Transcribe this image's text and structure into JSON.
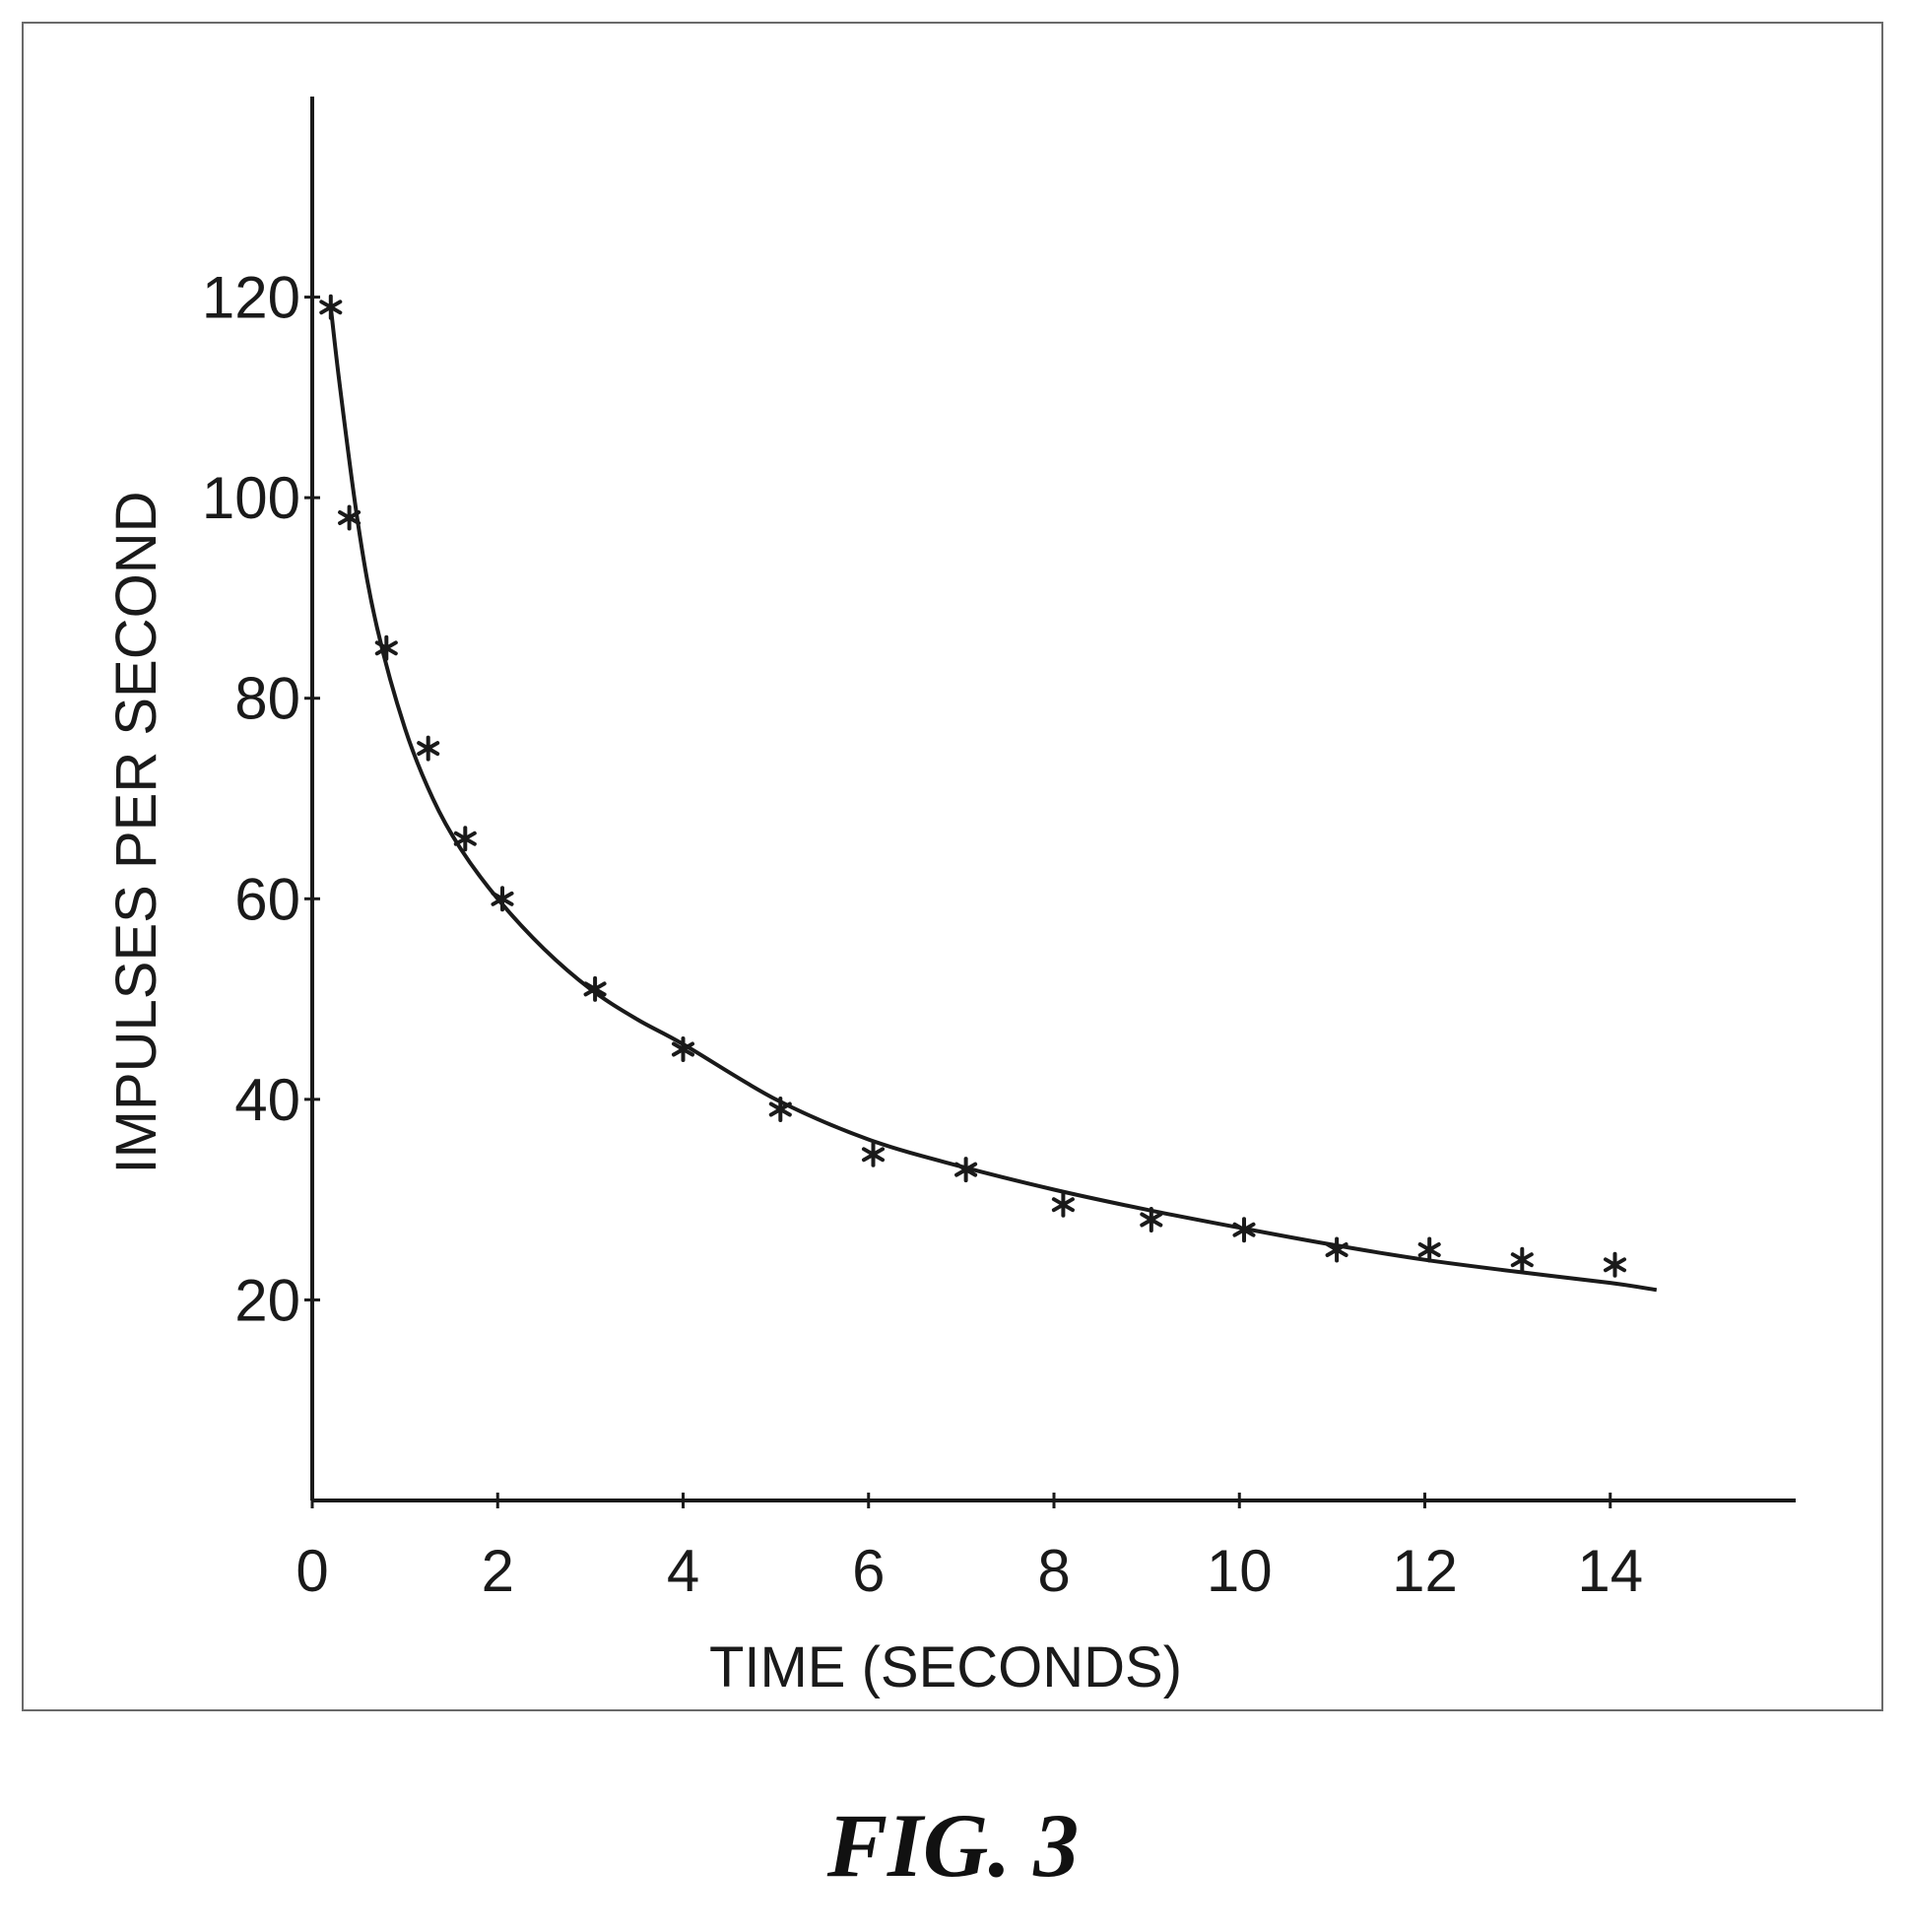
{
  "figure": {
    "caption": "FIG. 3"
  },
  "chart_data": {
    "type": "scatter",
    "title": "",
    "xlabel": "TIME (SECONDS)",
    "ylabel": "IMPULSES PER SECOND",
    "xlim": [
      0,
      16
    ],
    "ylim": [
      0,
      140
    ],
    "x_ticks": [
      0,
      2,
      4,
      6,
      8,
      10,
      12,
      14
    ],
    "y_ticks": [
      20,
      40,
      60,
      80,
      100,
      120
    ],
    "grid": false,
    "legend": "none",
    "series": [
      {
        "kind": "points",
        "marker": "asterisk",
        "x": [
          0.2,
          0.4,
          0.8,
          1.25,
          1.65,
          2.05,
          3.05,
          4.0,
          5.05,
          6.05,
          7.05,
          8.1,
          9.05,
          10.05,
          11.05,
          12.05,
          13.05,
          14.05
        ],
        "y": [
          119,
          98,
          85,
          75,
          66,
          60,
          51,
          45,
          39,
          34.5,
          33,
          29.5,
          28,
          27,
          25,
          25,
          24,
          23.5
        ]
      },
      {
        "kind": "curve",
        "x": [
          0.2,
          0.3,
          0.5,
          0.7,
          1.0,
          1.3,
          1.6,
          2.0,
          2.5,
          3.0,
          3.5,
          4.0,
          5.0,
          6.0,
          7.0,
          8.0,
          9.0,
          10.0,
          11.0,
          12.0,
          13.0,
          14.0,
          14.5
        ],
        "y": [
          119,
          111,
          97,
          87,
          77,
          70,
          65,
          60,
          55,
          51,
          48,
          45.5,
          40,
          36,
          33.3,
          31,
          29,
          27.2,
          25.5,
          24,
          22.8,
          21.7,
          21
        ]
      }
    ],
    "colors": {
      "ink": "#1a1a1a",
      "frame": "#6a6a6a"
    }
  }
}
